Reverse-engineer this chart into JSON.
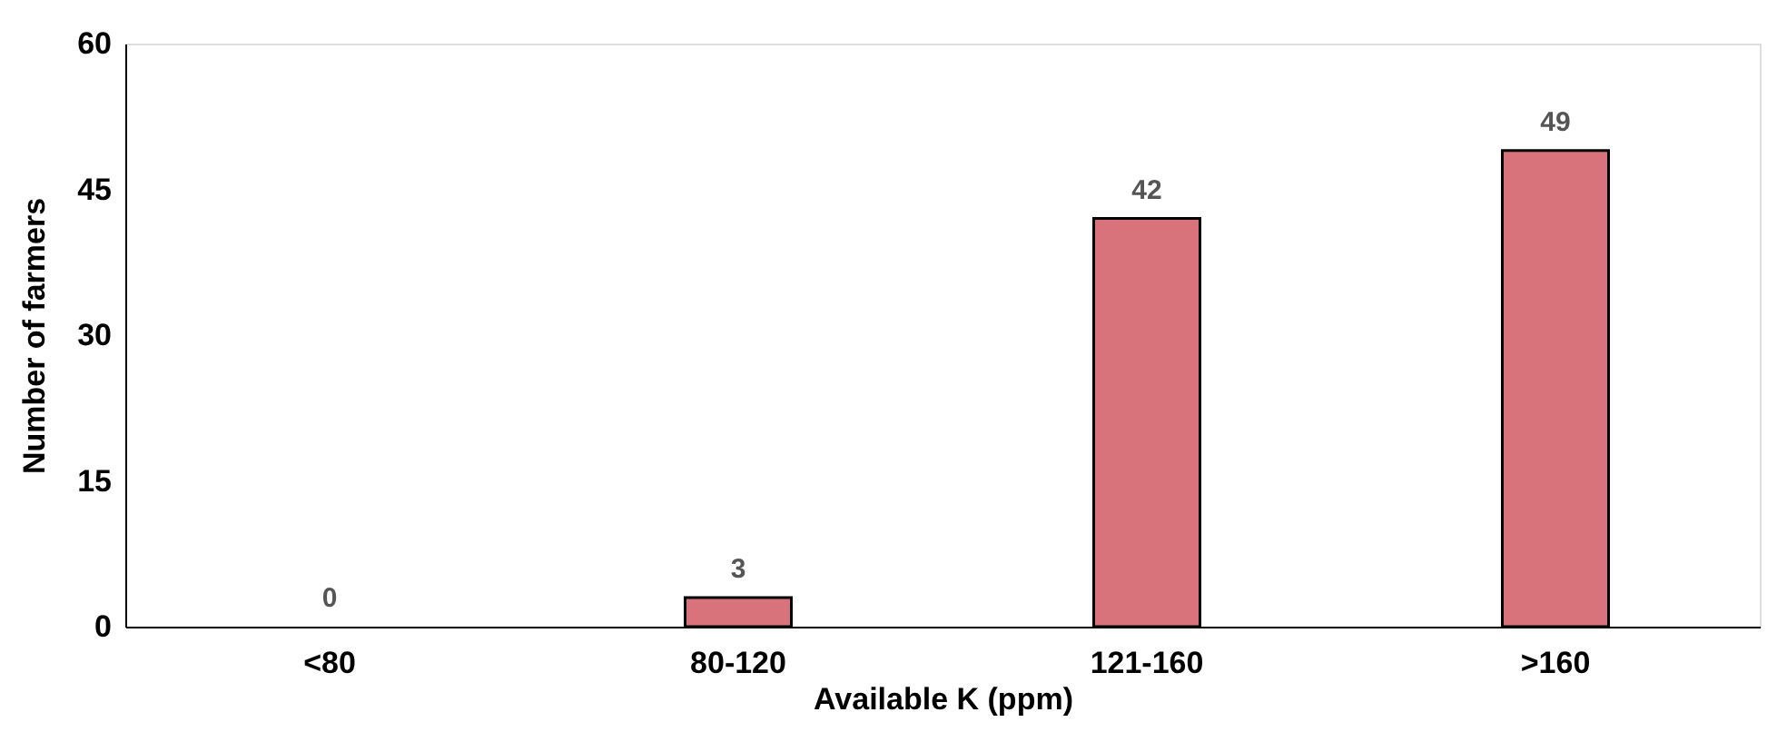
{
  "chart_data": {
    "type": "bar",
    "categories": [
      "<80",
      "80-120",
      "121-160",
      ">160"
    ],
    "values": [
      0,
      3,
      42,
      49
    ],
    "color": "#d9737b",
    "xlabel": "Available K (ppm)",
    "ylabel": "Number of farmers",
    "ylim": [
      0,
      60
    ],
    "yticks": [
      0,
      15,
      30,
      45,
      60
    ],
    "grid": false,
    "data_labels": true
  }
}
